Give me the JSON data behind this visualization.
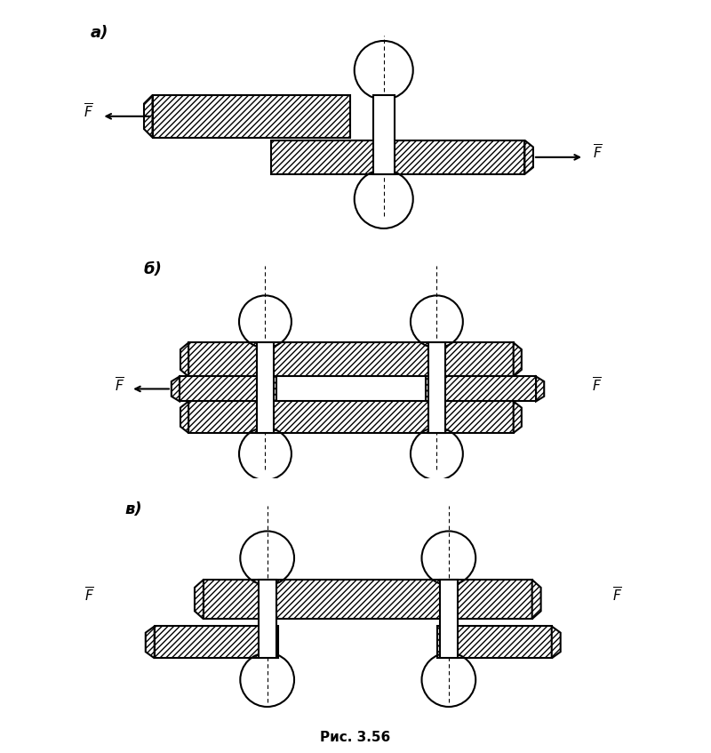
{
  "bg_color": "#ffffff",
  "hatch_color": "#000000",
  "hatch_pattern": "////",
  "line_color": "#000000",
  "fig_width": 8.0,
  "fig_height": 8.47,
  "title": "Рис. 3.56",
  "labels_a": "а)",
  "labels_b": "б)",
  "labels_v": "в)"
}
